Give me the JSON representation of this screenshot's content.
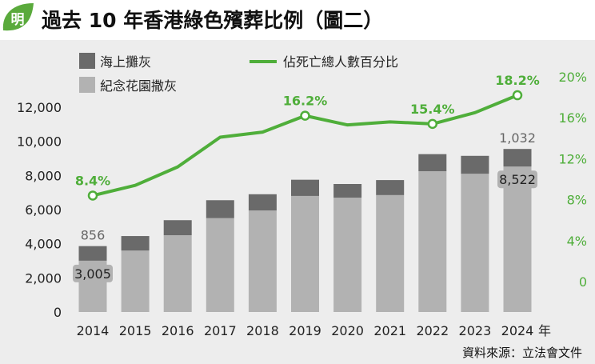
{
  "header": {
    "badge": "明",
    "title": "過去 10 年香港綠色殯葬比例（圖二）"
  },
  "source": "資料來源：立法會文件",
  "colors": {
    "sea": "#6a6a6a",
    "garden": "#b2b2b2",
    "line": "#4fae3a",
    "badge": "#5aaa3c"
  },
  "chart_data": {
    "type": "bar",
    "categories": [
      "2014",
      "2015",
      "2016",
      "2017",
      "2018",
      "2019",
      "2020",
      "2021",
      "2022",
      "2023",
      "2024"
    ],
    "x_unit": "年",
    "ylim": [
      0,
      12000
    ],
    "y_ticks": [
      "12,000",
      "10,000",
      "8,000",
      "6,000",
      "4,000",
      "2,000",
      "0"
    ],
    "y2lim": [
      0,
      20
    ],
    "y2_ticks": [
      "20%",
      "16%",
      "12%",
      "8%",
      "4%",
      "0"
    ],
    "grid": false,
    "legend": [
      {
        "label": "海上攤灰",
        "kind": "bar",
        "color": "#6a6a6a"
      },
      {
        "label": "紀念花園撒灰",
        "kind": "bar",
        "color": "#b2b2b2"
      },
      {
        "label": "佔死亡總人數百分比",
        "kind": "line",
        "color": "#4fae3a"
      }
    ],
    "series": [
      {
        "name": "紀念花園撒灰",
        "stack": "base",
        "values": [
          3005,
          3600,
          4500,
          5500,
          5950,
          6800,
          6700,
          6850,
          8250,
          8100,
          8522
        ]
      },
      {
        "name": "海上攤灰",
        "stack": "top",
        "values": [
          856,
          850,
          880,
          1050,
          950,
          950,
          800,
          880,
          1000,
          1050,
          1032
        ]
      },
      {
        "name": "佔死亡總人數百分比",
        "axis": "right",
        "kind": "line",
        "values": [
          8.4,
          9.4,
          11.2,
          14.1,
          14.6,
          16.2,
          15.3,
          15.6,
          15.4,
          16.5,
          18.2
        ]
      }
    ],
    "bar_labels": [
      {
        "index": 0,
        "series": "紀念花園撒灰",
        "text": "3,005"
      },
      {
        "index": 0,
        "series": "海上攤灰",
        "text": "856"
      },
      {
        "index": 10,
        "series": "紀念花園撒灰",
        "text": "8,522"
      },
      {
        "index": 10,
        "series": "海上攤灰",
        "text": "1,032"
      }
    ],
    "line_labels": [
      {
        "index": 0,
        "text": "8.4%"
      },
      {
        "index": 5,
        "text": "16.2%"
      },
      {
        "index": 8,
        "text": "15.4%"
      },
      {
        "index": 10,
        "text": "18.2%"
      }
    ]
  }
}
